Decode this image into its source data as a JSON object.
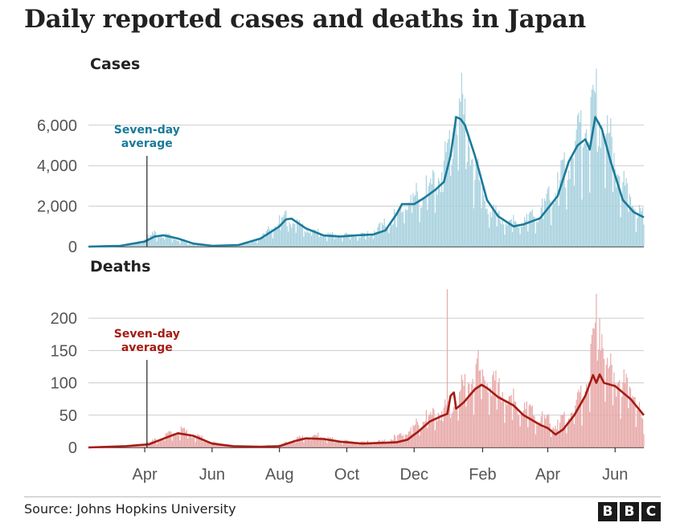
{
  "title": "Daily reported cases and deaths in Japan",
  "source": "Source: Johns Hopkins University",
  "logo": [
    "B",
    "B",
    "C"
  ],
  "colors": {
    "cases_line": "#1a7a99",
    "cases_bar": "#a9d2df",
    "deaths_line": "#a51c14",
    "deaths_bar": "#e8aaaa",
    "grid": "#cccccc"
  },
  "x_tick_labels": [
    "Apr",
    "Jun",
    "Aug",
    "Oct",
    "Dec",
    "Feb",
    "Apr",
    "Jun"
  ],
  "chart_data": [
    {
      "type": "line",
      "title": "Cases",
      "ylim": [
        0,
        7500
      ],
      "yticks": [
        0,
        2000,
        4000,
        6000
      ],
      "ytick_labels": [
        "0",
        "2,000",
        "4,000",
        "6,000"
      ],
      "x_start": "2020-02-10",
      "x_end": "2021-06-27",
      "x_ticks": [
        "2020-04-01",
        "2020-06-01",
        "2020-08-01",
        "2020-10-01",
        "2020-12-01",
        "2021-02-01",
        "2021-04-01",
        "2021-06-01"
      ],
      "annotation": {
        "lines": [
          "Seven-day",
          "average"
        ],
        "date": "2020-04-03"
      },
      "series": [
        {
          "style": "bars",
          "note": "daily reported cases, approximate envelope",
          "points": [
            [
              "2020-02-10",
              10
            ],
            [
              "2020-03-01",
              30
            ],
            [
              "2020-03-25",
              150
            ],
            [
              "2020-04-10",
              650
            ],
            [
              "2020-04-25",
              500
            ],
            [
              "2020-05-10",
              150
            ],
            [
              "2020-06-01",
              40
            ],
            [
              "2020-06-20",
              60
            ],
            [
              "2020-07-10",
              300
            ],
            [
              "2020-07-25",
              900
            ],
            [
              "2020-08-05",
              1500
            ],
            [
              "2020-08-20",
              1000
            ],
            [
              "2020-09-10",
              600
            ],
            [
              "2020-10-01",
              550
            ],
            [
              "2020-10-20",
              600
            ],
            [
              "2020-11-10",
              1300
            ],
            [
              "2020-11-25",
              2300
            ],
            [
              "2020-12-10",
              2700
            ],
            [
              "2020-12-25",
              3500
            ],
            [
              "2021-01-05",
              5500
            ],
            [
              "2021-01-08",
              7800
            ],
            [
              "2021-01-15",
              6500
            ],
            [
              "2021-01-25",
              4000
            ],
            [
              "2021-02-05",
              2000
            ],
            [
              "2021-02-20",
              1300
            ],
            [
              "2021-03-10",
              1200
            ],
            [
              "2021-03-25",
              1700
            ],
            [
              "2021-04-10",
              3000
            ],
            [
              "2021-04-25",
              5000
            ],
            [
              "2021-05-05",
              5800
            ],
            [
              "2021-05-13",
              7200
            ],
            [
              "2021-05-22",
              6200
            ],
            [
              "2021-06-05",
              3500
            ],
            [
              "2021-06-20",
              1800
            ],
            [
              "2021-06-27",
              1600
            ]
          ]
        },
        {
          "style": "line",
          "name": "Seven-day average",
          "points": [
            [
              "2020-02-10",
              0
            ],
            [
              "2020-03-10",
              40
            ],
            [
              "2020-04-01",
              250
            ],
            [
              "2020-04-10",
              500
            ],
            [
              "2020-04-18",
              560
            ],
            [
              "2020-05-01",
              400
            ],
            [
              "2020-05-15",
              150
            ],
            [
              "2020-06-01",
              40
            ],
            [
              "2020-06-25",
              80
            ],
            [
              "2020-07-15",
              400
            ],
            [
              "2020-08-01",
              1000
            ],
            [
              "2020-08-07",
              1350
            ],
            [
              "2020-08-12",
              1380
            ],
            [
              "2020-08-25",
              900
            ],
            [
              "2020-09-10",
              550
            ],
            [
              "2020-09-25",
              500
            ],
            [
              "2020-10-10",
              560
            ],
            [
              "2020-10-25",
              600
            ],
            [
              "2020-11-05",
              800
            ],
            [
              "2020-11-15",
              1600
            ],
            [
              "2020-11-20",
              2100
            ],
            [
              "2020-12-01",
              2100
            ],
            [
              "2020-12-10",
              2400
            ],
            [
              "2020-12-20",
              2800
            ],
            [
              "2020-12-28",
              3200
            ],
            [
              "2021-01-03",
              4500
            ],
            [
              "2021-01-08",
              6400
            ],
            [
              "2021-01-12",
              6300
            ],
            [
              "2021-01-16",
              6000
            ],
            [
              "2021-01-25",
              4500
            ],
            [
              "2021-02-05",
              2300
            ],
            [
              "2021-02-15",
              1500
            ],
            [
              "2021-03-01",
              1000
            ],
            [
              "2021-03-10",
              1100
            ],
            [
              "2021-03-25",
              1400
            ],
            [
              "2021-04-10",
              2500
            ],
            [
              "2021-04-20",
              4200
            ],
            [
              "2021-04-28",
              5000
            ],
            [
              "2021-05-05",
              5300
            ],
            [
              "2021-05-09",
              4800
            ],
            [
              "2021-05-14",
              6400
            ],
            [
              "2021-05-20",
              5800
            ],
            [
              "2021-05-28",
              4200
            ],
            [
              "2021-06-08",
              2300
            ],
            [
              "2021-06-18",
              1700
            ],
            [
              "2021-06-27",
              1450
            ]
          ]
        }
      ]
    },
    {
      "type": "line",
      "title": "Deaths",
      "ylim": [
        0,
        230
      ],
      "yticks": [
        0,
        50,
        100,
        150,
        200
      ],
      "ytick_labels": [
        "0",
        "50",
        "100",
        "150",
        "200"
      ],
      "x_start": "2020-02-10",
      "x_end": "2021-06-27",
      "x_ticks": [
        "2020-04-01",
        "2020-06-01",
        "2020-08-01",
        "2020-10-01",
        "2020-12-01",
        "2021-02-01",
        "2021-04-01",
        "2021-06-01"
      ],
      "annotation": {
        "lines": [
          "Seven-day",
          "average"
        ],
        "date": "2020-04-03"
      },
      "series": [
        {
          "style": "bars",
          "note": "daily reported deaths, approximate envelope",
          "points": [
            [
              "2020-02-10",
              1
            ],
            [
              "2020-03-15",
              3
            ],
            [
              "2020-04-01",
              5
            ],
            [
              "2020-04-20",
              18
            ],
            [
              "2020-05-01",
              28
            ],
            [
              "2020-05-15",
              20
            ],
            [
              "2020-06-01",
              8
            ],
            [
              "2020-06-20",
              2
            ],
            [
              "2020-07-10",
              2
            ],
            [
              "2020-08-01",
              4
            ],
            [
              "2020-08-20",
              15
            ],
            [
              "2020-09-05",
              18
            ],
            [
              "2020-09-25",
              10
            ],
            [
              "2020-10-15",
              8
            ],
            [
              "2020-11-05",
              10
            ],
            [
              "2020-11-25",
              25
            ],
            [
              "2020-12-10",
              45
            ],
            [
              "2020-12-25",
              55
            ],
            [
              "2020-12-31",
              245
            ],
            [
              "2021-01-05",
              70
            ],
            [
              "2021-01-15",
              95
            ],
            [
              "2021-01-28",
              120
            ],
            [
              "2021-02-05",
              105
            ],
            [
              "2021-02-20",
              85
            ],
            [
              "2021-03-10",
              60
            ],
            [
              "2021-03-25",
              45
            ],
            [
              "2021-04-10",
              35
            ],
            [
              "2021-04-25",
              60
            ],
            [
              "2021-05-05",
              90
            ],
            [
              "2021-05-10",
              145
            ],
            [
              "2021-05-18",
              215
            ],
            [
              "2021-05-25",
              120
            ],
            [
              "2021-06-05",
              105
            ],
            [
              "2021-06-20",
              80
            ],
            [
              "2021-06-27",
              30
            ]
          ]
        },
        {
          "style": "line",
          "name": "Seven-day average",
          "points": [
            [
              "2020-02-10",
              0
            ],
            [
              "2020-03-15",
              2
            ],
            [
              "2020-04-05",
              5
            ],
            [
              "2020-04-20",
              15
            ],
            [
              "2020-05-01",
              22
            ],
            [
              "2020-05-08",
              20
            ],
            [
              "2020-05-15",
              18
            ],
            [
              "2020-06-01",
              6
            ],
            [
              "2020-06-20",
              2
            ],
            [
              "2020-07-15",
              1
            ],
            [
              "2020-08-01",
              2
            ],
            [
              "2020-08-15",
              10
            ],
            [
              "2020-08-25",
              14
            ],
            [
              "2020-09-10",
              13
            ],
            [
              "2020-09-25",
              9
            ],
            [
              "2020-10-15",
              6
            ],
            [
              "2020-10-30",
              7
            ],
            [
              "2020-11-15",
              8
            ],
            [
              "2020-11-25",
              12
            ],
            [
              "2020-12-05",
              25
            ],
            [
              "2020-12-15",
              40
            ],
            [
              "2020-12-25",
              48
            ],
            [
              "2020-12-31",
              52
            ],
            [
              "2021-01-03",
              80
            ],
            [
              "2021-01-06",
              85
            ],
            [
              "2021-01-08",
              60
            ],
            [
              "2021-01-15",
              70
            ],
            [
              "2021-01-25",
              90
            ],
            [
              "2021-01-31",
              97
            ],
            [
              "2021-02-05",
              92
            ],
            [
              "2021-02-15",
              78
            ],
            [
              "2021-03-01",
              65
            ],
            [
              "2021-03-10",
              50
            ],
            [
              "2021-03-25",
              35
            ],
            [
              "2021-04-01",
              30
            ],
            [
              "2021-04-08",
              20
            ],
            [
              "2021-04-15",
              28
            ],
            [
              "2021-04-25",
              50
            ],
            [
              "2021-05-05",
              80
            ],
            [
              "2021-05-12",
              112
            ],
            [
              "2021-05-15",
              100
            ],
            [
              "2021-05-18",
              113
            ],
            [
              "2021-05-22",
              100
            ],
            [
              "2021-06-01",
              95
            ],
            [
              "2021-06-15",
              75
            ],
            [
              "2021-06-27",
              50
            ]
          ]
        }
      ]
    }
  ]
}
